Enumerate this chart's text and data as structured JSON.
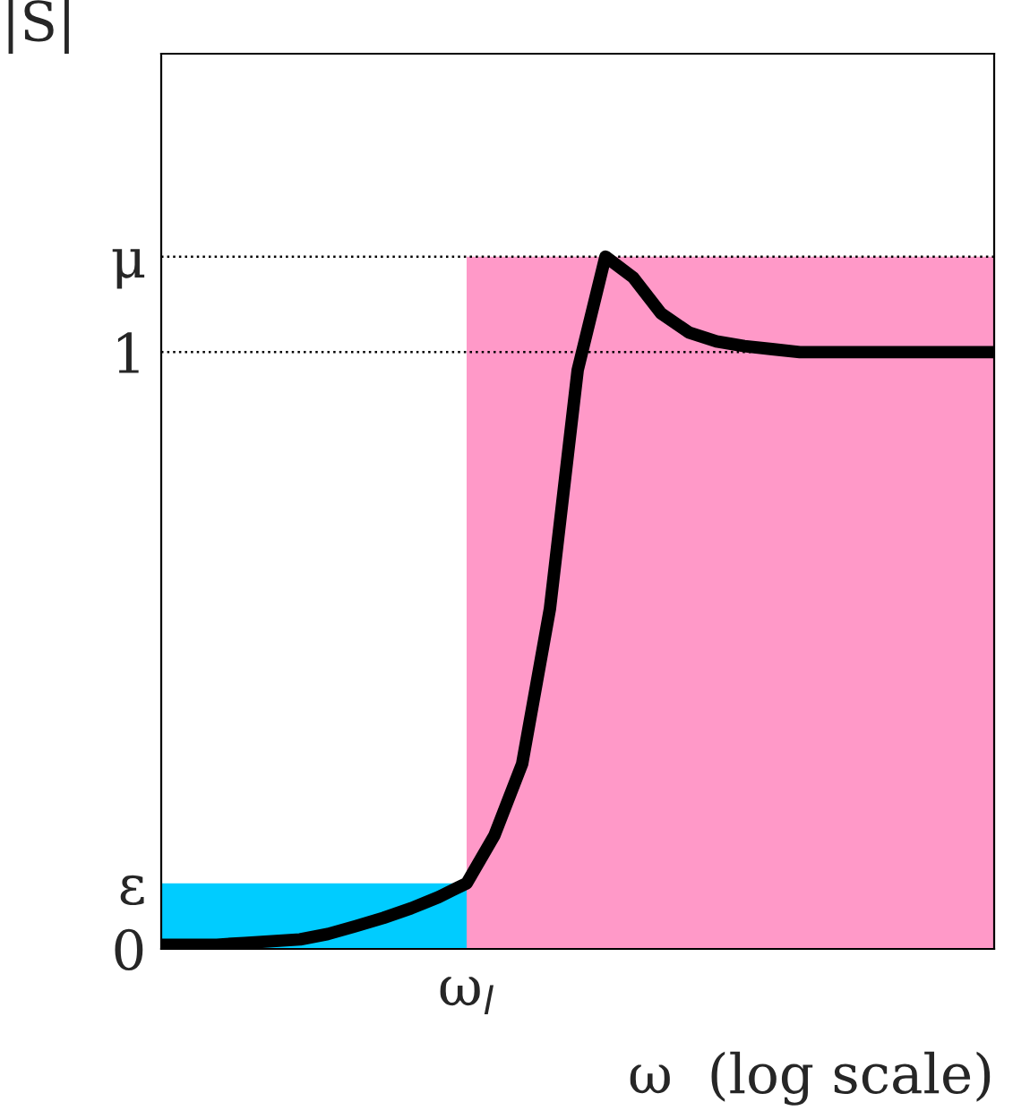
{
  "chart_data": {
    "type": "line",
    "xlabel": "ω  (log scale)",
    "ylabel": "|S|",
    "categories": [
      null,
      null,
      null,
      null,
      null,
      null,
      null,
      null,
      null,
      null,
      null,
      "ω$_{l}$",
      null,
      null,
      null,
      null,
      null,
      null,
      null,
      null,
      null,
      null,
      null,
      null,
      null,
      null,
      null,
      null,
      null,
      null,
      null
    ],
    "ylim": [
      0,
      1.5
    ],
    "yticks": [
      0,
      {
        "value": 0.11,
        "label": "ε"
      },
      1,
      {
        "value": 1.16,
        "label": "μ"
      }
    ],
    "grid": false,
    "legend": false,
    "ref_lines": [
      {
        "axis": "y",
        "value": 1.16,
        "line_style": "dotted",
        "color": "#000000"
      },
      {
        "axis": "y",
        "value": 1,
        "line_style": "dotted",
        "color": "#000000"
      }
    ],
    "series": [
      {
        "type": "area",
        "color": "#00ccff",
        "values": [
          0.11,
          0.11,
          0.11,
          0.11,
          0.11,
          0.11,
          0.11,
          0.11,
          0.11,
          0.11,
          0.11,
          0.11,
          null,
          null,
          null,
          null,
          null,
          null,
          null,
          null,
          null,
          null,
          null,
          null,
          null,
          null,
          null,
          null,
          null,
          null,
          null
        ]
      },
      {
        "type": "area",
        "color": "#ff99c8",
        "values": [
          null,
          null,
          null,
          null,
          null,
          null,
          null,
          null,
          null,
          null,
          null,
          1.16,
          1.16,
          1.16,
          1.16,
          1.16,
          1.16,
          1.16,
          1.16,
          1.16,
          1.16,
          1.16,
          1.16,
          1.16,
          1.16,
          1.16,
          1.16,
          1.16,
          1.16,
          1.16,
          1.16
        ]
      },
      {
        "color": "#000000",
        "line_style": "solid",
        "marker": "none",
        "values": [
          0.007,
          0.007,
          0.007,
          0.01,
          0.013,
          0.016,
          0.025,
          0.038,
          0.052,
          0.068,
          0.087,
          0.11,
          0.19,
          0.31,
          0.57,
          0.97,
          1.16,
          1.125,
          1.065,
          1.033,
          1.018,
          1.01,
          1.005,
          1.0,
          1.0,
          1.0,
          1.0,
          1.0,
          1.0,
          1.0,
          1.0
        ]
      }
    ]
  }
}
